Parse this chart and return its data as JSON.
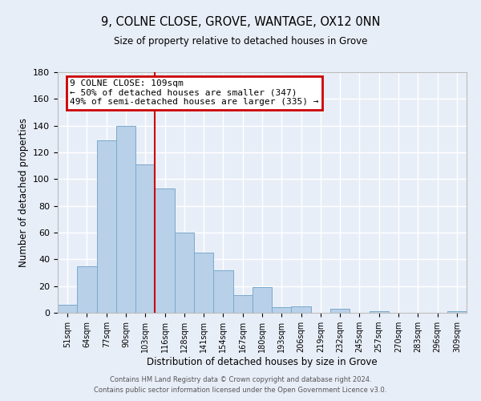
{
  "title": "9, COLNE CLOSE, GROVE, WANTAGE, OX12 0NN",
  "subtitle": "Size of property relative to detached houses in Grove",
  "xlabel": "Distribution of detached houses by size in Grove",
  "ylabel": "Number of detached properties",
  "bin_labels": [
    "51sqm",
    "64sqm",
    "77sqm",
    "90sqm",
    "103sqm",
    "116sqm",
    "128sqm",
    "141sqm",
    "154sqm",
    "167sqm",
    "180sqm",
    "193sqm",
    "206sqm",
    "219sqm",
    "232sqm",
    "245sqm",
    "257sqm",
    "270sqm",
    "283sqm",
    "296sqm",
    "309sqm"
  ],
  "bar_heights": [
    6,
    35,
    129,
    140,
    111,
    93,
    60,
    45,
    32,
    13,
    19,
    4,
    5,
    0,
    3,
    0,
    1,
    0,
    0,
    0,
    1
  ],
  "bar_color": "#b8d0e8",
  "bar_edge_color": "#7aaacb",
  "ylim": [
    0,
    180
  ],
  "yticks": [
    0,
    20,
    40,
    60,
    80,
    100,
    120,
    140,
    160,
    180
  ],
  "vline_x": 5.0,
  "vline_color": "#cc0000",
  "annotation_title": "9 COLNE CLOSE: 109sqm",
  "annotation_line1": "← 50% of detached houses are smaller (347)",
  "annotation_line2": "49% of semi-detached houses are larger (335) →",
  "annotation_box_color": "#cc0000",
  "footer1": "Contains HM Land Registry data © Crown copyright and database right 2024.",
  "footer2": "Contains public sector information licensed under the Open Government Licence v3.0.",
  "background_color": "#e8eef8",
  "grid_color": "#ffffff"
}
